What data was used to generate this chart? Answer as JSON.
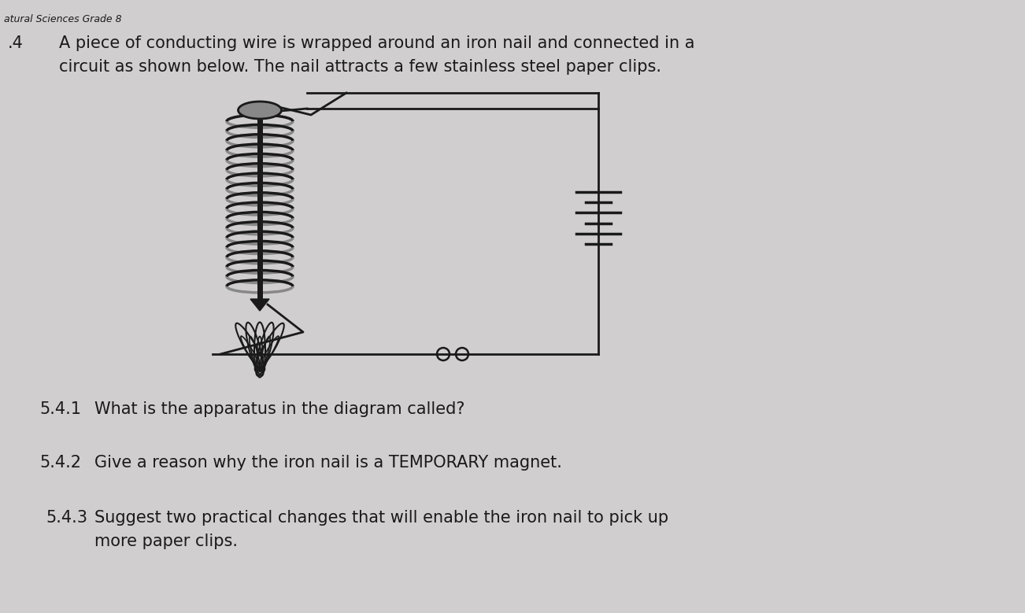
{
  "bg_color": "#d0cece",
  "title_text": "atural Sciences Grade 8",
  "title_fontsize": 9,
  "heading_number": ".4",
  "heading_text_line1": "A piece of conducting wire is wrapped around an iron nail and connected in a",
  "heading_text_line2": "circuit as shown below. The nail attracts a few stainless steel paper clips.",
  "heading_fontsize": 15,
  "q1_label": "5.4.1",
  "q1_text": "What is the apparatus in the diagram called?",
  "q2_label": "5.4.2",
  "q2_text": "Give a reason why the iron nail is a TEMPORARY magnet.",
  "q3_label": "5.4.3",
  "q3_text_line1": "Suggest two practical changes that will enable the iron nail to pick up",
  "q3_text_line2": "more paper clips.",
  "q_fontsize": 15,
  "text_color": "#1a1a1a",
  "diagram_color": "#1a1a1a",
  "nail_color": "#3a3a3a",
  "coil_color": "#2a2a2a"
}
